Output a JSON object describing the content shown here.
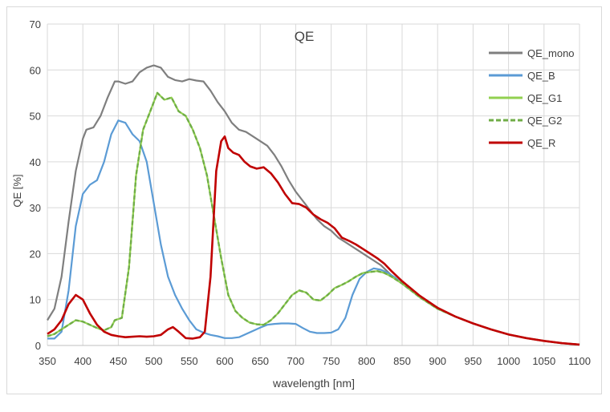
{
  "chart_data": {
    "type": "line",
    "title": "QE",
    "xlabel": "wavelength [nm]",
    "ylabel": "QE [%]",
    "xlim": [
      350,
      1100
    ],
    "ylim": [
      0,
      70
    ],
    "x_ticks": [
      350,
      400,
      450,
      500,
      550,
      600,
      650,
      700,
      750,
      800,
      850,
      900,
      950,
      1000,
      1050,
      1100
    ],
    "y_ticks": [
      0,
      10,
      20,
      30,
      40,
      50,
      60,
      70
    ],
    "grid": "vertical and horizontal",
    "legend_position": "top-right",
    "colors": {
      "mono": "#7f7f7f",
      "blue": "#5b9bd5",
      "green": "#92d050",
      "green_dashed": "#70ad47",
      "red": "#c00000",
      "grid": "#d9d9d9"
    },
    "series": [
      {
        "name": "QE_mono",
        "color": "#7f7f7f",
        "dash": "solid",
        "points": [
          [
            350,
            5.5
          ],
          [
            360,
            8
          ],
          [
            370,
            15
          ],
          [
            380,
            27
          ],
          [
            390,
            38
          ],
          [
            400,
            45
          ],
          [
            405,
            47
          ],
          [
            415,
            47.5
          ],
          [
            425,
            50
          ],
          [
            435,
            54
          ],
          [
            445,
            57.5
          ],
          [
            450,
            57.5
          ],
          [
            460,
            57
          ],
          [
            470,
            57.5
          ],
          [
            480,
            59.5
          ],
          [
            490,
            60.5
          ],
          [
            500,
            61
          ],
          [
            510,
            60.5
          ],
          [
            520,
            58.5
          ],
          [
            530,
            57.8
          ],
          [
            540,
            57.5
          ],
          [
            550,
            58
          ],
          [
            560,
            57.7
          ],
          [
            570,
            57.5
          ],
          [
            580,
            55.5
          ],
          [
            590,
            53
          ],
          [
            600,
            51
          ],
          [
            610,
            48.5
          ],
          [
            620,
            47
          ],
          [
            630,
            46.5
          ],
          [
            640,
            45.5
          ],
          [
            650,
            44.5
          ],
          [
            660,
            43.5
          ],
          [
            670,
            41.5
          ],
          [
            680,
            39
          ],
          [
            690,
            36
          ],
          [
            700,
            33.5
          ],
          [
            710,
            31.5
          ],
          [
            720,
            29.5
          ],
          [
            730,
            27.5
          ],
          [
            740,
            26
          ],
          [
            750,
            25
          ],
          [
            760,
            23.5
          ],
          [
            770,
            22.5
          ],
          [
            780,
            21.5
          ],
          [
            790,
            20.5
          ],
          [
            800,
            19.5
          ],
          [
            810,
            18.5
          ],
          [
            820,
            17.5
          ],
          [
            830,
            16
          ],
          [
            840,
            14.5
          ],
          [
            850,
            13.5
          ],
          [
            875,
            10.5
          ],
          [
            900,
            8
          ],
          [
            925,
            6.3
          ],
          [
            950,
            4.8
          ],
          [
            975,
            3.5
          ],
          [
            1000,
            2.4
          ],
          [
            1025,
            1.6
          ],
          [
            1050,
            1
          ],
          [
            1075,
            0.5
          ],
          [
            1100,
            0.2
          ]
        ]
      },
      {
        "name": "QE_B",
        "color": "#5b9bd5",
        "dash": "solid",
        "points": [
          [
            350,
            1.5
          ],
          [
            360,
            1.5
          ],
          [
            370,
            3
          ],
          [
            380,
            12
          ],
          [
            390,
            26
          ],
          [
            400,
            33
          ],
          [
            410,
            35
          ],
          [
            420,
            36
          ],
          [
            430,
            40
          ],
          [
            440,
            46
          ],
          [
            450,
            49
          ],
          [
            460,
            48.5
          ],
          [
            470,
            46
          ],
          [
            480,
            44.5
          ],
          [
            490,
            40
          ],
          [
            500,
            31
          ],
          [
            510,
            22
          ],
          [
            520,
            15
          ],
          [
            530,
            11
          ],
          [
            540,
            8
          ],
          [
            550,
            5.5
          ],
          [
            560,
            3.5
          ],
          [
            570,
            2.8
          ],
          [
            580,
            2.3
          ],
          [
            590,
            2
          ],
          [
            600,
            1.6
          ],
          [
            610,
            1.6
          ],
          [
            620,
            1.8
          ],
          [
            630,
            2.5
          ],
          [
            640,
            3.2
          ],
          [
            650,
            3.9
          ],
          [
            660,
            4.5
          ],
          [
            670,
            4.7
          ],
          [
            680,
            4.8
          ],
          [
            690,
            4.8
          ],
          [
            700,
            4.7
          ],
          [
            710,
            3.8
          ],
          [
            720,
            3
          ],
          [
            730,
            2.7
          ],
          [
            740,
            2.7
          ],
          [
            750,
            2.8
          ],
          [
            760,
            3.5
          ],
          [
            770,
            6
          ],
          [
            780,
            11
          ],
          [
            790,
            14.5
          ],
          [
            800,
            16
          ],
          [
            810,
            16.8
          ],
          [
            820,
            16.5
          ],
          [
            830,
            15.8
          ],
          [
            840,
            14.8
          ],
          [
            850,
            13.5
          ],
          [
            875,
            10.5
          ],
          [
            900,
            8
          ],
          [
            925,
            6.3
          ],
          [
            950,
            4.8
          ],
          [
            975,
            3.5
          ],
          [
            1000,
            2.4
          ],
          [
            1025,
            1.6
          ],
          [
            1050,
            1
          ],
          [
            1075,
            0.5
          ],
          [
            1100,
            0.2
          ]
        ]
      },
      {
        "name": "QE_G1",
        "color": "#92d050",
        "dash": "solid",
        "points": [
          [
            350,
            2
          ],
          [
            360,
            2.5
          ],
          [
            370,
            3.5
          ],
          [
            380,
            4.5
          ],
          [
            390,
            5.5
          ],
          [
            400,
            5.2
          ],
          [
            410,
            4.5
          ],
          [
            420,
            3.8
          ],
          [
            430,
            3.3
          ],
          [
            440,
            4
          ],
          [
            445,
            5.5
          ],
          [
            455,
            6
          ],
          [
            465,
            17
          ],
          [
            475,
            37
          ],
          [
            485,
            47
          ],
          [
            495,
            51
          ],
          [
            505,
            55
          ],
          [
            515,
            53.5
          ],
          [
            525,
            54
          ],
          [
            535,
            51
          ],
          [
            545,
            50
          ],
          [
            555,
            47
          ],
          [
            565,
            43
          ],
          [
            575,
            37
          ],
          [
            585,
            28
          ],
          [
            595,
            19
          ],
          [
            605,
            11
          ],
          [
            615,
            7.5
          ],
          [
            625,
            6
          ],
          [
            635,
            5
          ],
          [
            645,
            4.6
          ],
          [
            655,
            4.5
          ],
          [
            665,
            5.5
          ],
          [
            675,
            7
          ],
          [
            685,
            9
          ],
          [
            695,
            11
          ],
          [
            705,
            12
          ],
          [
            715,
            11.5
          ],
          [
            725,
            10
          ],
          [
            735,
            9.8
          ],
          [
            745,
            11
          ],
          [
            755,
            12.5
          ],
          [
            765,
            13.2
          ],
          [
            775,
            14
          ],
          [
            785,
            15
          ],
          [
            795,
            15.8
          ],
          [
            805,
            16
          ],
          [
            815,
            16.2
          ],
          [
            825,
            15.8
          ],
          [
            835,
            15
          ],
          [
            850,
            13.5
          ],
          [
            875,
            10.5
          ],
          [
            900,
            8
          ],
          [
            925,
            6.3
          ],
          [
            950,
            4.8
          ],
          [
            975,
            3.5
          ],
          [
            1000,
            2.4
          ],
          [
            1025,
            1.6
          ],
          [
            1050,
            1
          ],
          [
            1075,
            0.5
          ],
          [
            1100,
            0.2
          ]
        ]
      },
      {
        "name": "QE_G2",
        "color": "#70ad47",
        "dash": "dashed",
        "points": [
          [
            350,
            2
          ],
          [
            360,
            2.5
          ],
          [
            370,
            3.5
          ],
          [
            380,
            4.5
          ],
          [
            390,
            5.5
          ],
          [
            400,
            5.2
          ],
          [
            410,
            4.5
          ],
          [
            420,
            3.8
          ],
          [
            430,
            3.3
          ],
          [
            440,
            4
          ],
          [
            445,
            5.5
          ],
          [
            455,
            6
          ],
          [
            465,
            17
          ],
          [
            475,
            37
          ],
          [
            485,
            47
          ],
          [
            495,
            51
          ],
          [
            505,
            55
          ],
          [
            515,
            53.5
          ],
          [
            525,
            54
          ],
          [
            535,
            51
          ],
          [
            545,
            50
          ],
          [
            555,
            47
          ],
          [
            565,
            43
          ],
          [
            575,
            37
          ],
          [
            585,
            28
          ],
          [
            595,
            19
          ],
          [
            605,
            11
          ],
          [
            615,
            7.5
          ],
          [
            625,
            6
          ],
          [
            635,
            5
          ],
          [
            645,
            4.6
          ],
          [
            655,
            4.5
          ],
          [
            665,
            5.5
          ],
          [
            675,
            7
          ],
          [
            685,
            9
          ],
          [
            695,
            11
          ],
          [
            705,
            12
          ],
          [
            715,
            11.5
          ],
          [
            725,
            10
          ],
          [
            735,
            9.8
          ],
          [
            745,
            11
          ],
          [
            755,
            12.5
          ],
          [
            765,
            13.2
          ],
          [
            775,
            14
          ],
          [
            785,
            15
          ],
          [
            795,
            15.8
          ],
          [
            805,
            16
          ],
          [
            815,
            16.2
          ],
          [
            825,
            15.8
          ],
          [
            835,
            15
          ],
          [
            850,
            13.5
          ],
          [
            875,
            10.5
          ],
          [
            900,
            8
          ],
          [
            925,
            6.3
          ],
          [
            950,
            4.8
          ],
          [
            975,
            3.5
          ],
          [
            1000,
            2.4
          ],
          [
            1025,
            1.6
          ],
          [
            1050,
            1
          ],
          [
            1075,
            0.5
          ],
          [
            1100,
            0.2
          ]
        ]
      },
      {
        "name": "QE_R",
        "color": "#c00000",
        "dash": "solid",
        "points": [
          [
            350,
            2.5
          ],
          [
            360,
            3.5
          ],
          [
            370,
            5.5
          ],
          [
            380,
            9
          ],
          [
            390,
            11
          ],
          [
            400,
            10
          ],
          [
            410,
            7
          ],
          [
            420,
            4.5
          ],
          [
            430,
            3
          ],
          [
            440,
            2.3
          ],
          [
            450,
            2
          ],
          [
            460,
            1.8
          ],
          [
            470,
            1.9
          ],
          [
            480,
            2
          ],
          [
            490,
            1.9
          ],
          [
            500,
            2
          ],
          [
            510,
            2.3
          ],
          [
            520,
            3.5
          ],
          [
            527,
            4
          ],
          [
            535,
            3
          ],
          [
            545,
            1.6
          ],
          [
            555,
            1.5
          ],
          [
            565,
            1.8
          ],
          [
            572,
            3
          ],
          [
            580,
            15
          ],
          [
            588,
            38
          ],
          [
            595,
            44.5
          ],
          [
            600,
            45.5
          ],
          [
            605,
            43
          ],
          [
            612,
            42
          ],
          [
            620,
            41.5
          ],
          [
            628,
            40
          ],
          [
            636,
            39
          ],
          [
            645,
            38.5
          ],
          [
            655,
            38.8
          ],
          [
            665,
            37.5
          ],
          [
            675,
            35.5
          ],
          [
            685,
            33
          ],
          [
            695,
            31
          ],
          [
            705,
            30.8
          ],
          [
            715,
            30
          ],
          [
            725,
            28.5
          ],
          [
            735,
            27.5
          ],
          [
            745,
            26.7
          ],
          [
            755,
            25.5
          ],
          [
            765,
            23.5
          ],
          [
            775,
            22.8
          ],
          [
            785,
            22
          ],
          [
            795,
            21
          ],
          [
            805,
            20
          ],
          [
            815,
            19
          ],
          [
            825,
            17.8
          ],
          [
            835,
            16.2
          ],
          [
            850,
            14
          ],
          [
            875,
            10.8
          ],
          [
            900,
            8.2
          ],
          [
            925,
            6.3
          ],
          [
            950,
            4.8
          ],
          [
            975,
            3.5
          ],
          [
            1000,
            2.4
          ],
          [
            1025,
            1.6
          ],
          [
            1050,
            1
          ],
          [
            1075,
            0.5
          ],
          [
            1100,
            0.2
          ]
        ]
      }
    ]
  }
}
